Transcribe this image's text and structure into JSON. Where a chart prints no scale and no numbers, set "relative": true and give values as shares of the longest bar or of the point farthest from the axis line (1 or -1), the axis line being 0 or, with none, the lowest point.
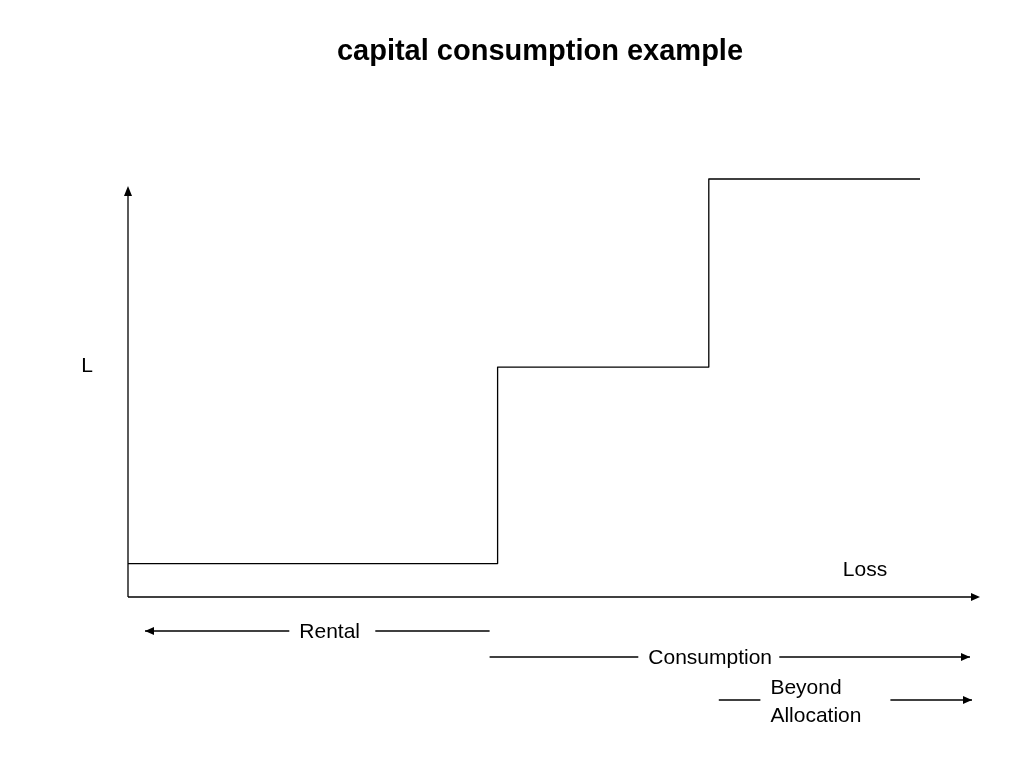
{
  "chart_data": {
    "type": "step",
    "title": "capital consumption example",
    "xlabel": "Loss",
    "ylabel": "L",
    "relative": true,
    "categories": [
      null,
      null,
      null,
      null,
      null,
      null,
      null,
      null,
      null,
      null,
      null,
      null,
      null,
      null,
      null,
      null
    ],
    "series": [
      {
        "color": "#000000",
        "values": [
          0.08,
          0.08,
          0.08,
          0.08,
          0.08,
          0.08,
          0.08,
          0.55,
          0.55,
          0.55,
          0.55,
          1,
          1,
          1,
          1,
          1
        ]
      }
    ],
    "annotations": [
      "Rental",
      "Consumption",
      "Beyond Allocation"
    ],
    "marker": "none",
    "line_style": "solid"
  }
}
